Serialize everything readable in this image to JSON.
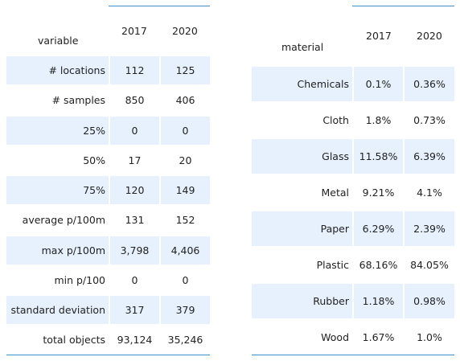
{
  "left_table": {
    "header": {
      "label": "variable",
      "col1": "2017",
      "col2": "2020"
    },
    "rows": [
      {
        "label": "# locations",
        "v2017": "112",
        "v2020": "125"
      },
      {
        "label": "# samples",
        "v2017": "850",
        "v2020": "406"
      },
      {
        "label": "25%",
        "v2017": "0",
        "v2020": "0"
      },
      {
        "label": "50%",
        "v2017": "17",
        "v2020": "20"
      },
      {
        "label": "75%",
        "v2017": "120",
        "v2020": "149"
      },
      {
        "label": "average p/100m",
        "v2017": "131",
        "v2020": "152"
      },
      {
        "label": "max p/100m",
        "v2017": "3,798",
        "v2020": "4,406"
      },
      {
        "label": "min p/100",
        "v2017": "0",
        "v2020": "0"
      },
      {
        "label": "standard deviation",
        "v2017": "317",
        "v2020": "379"
      },
      {
        "label": "total objects",
        "v2017": "93,124",
        "v2020": "35,246"
      }
    ]
  },
  "right_table": {
    "header": {
      "label": "material",
      "col1": "2017",
      "col2": "2020"
    },
    "rows": [
      {
        "label": "Chemicals",
        "v2017": "0.1%",
        "v2020": "0.36%"
      },
      {
        "label": "Cloth",
        "v2017": "1.8%",
        "v2020": "0.73%"
      },
      {
        "label": "Glass",
        "v2017": "11.58%",
        "v2020": "6.39%"
      },
      {
        "label": "Metal",
        "v2017": "9.21%",
        "v2020": "4.1%"
      },
      {
        "label": "Paper",
        "v2017": "6.29%",
        "v2020": "2.39%"
      },
      {
        "label": "Plastic",
        "v2017": "68.16%",
        "v2020": "84.05%"
      },
      {
        "label": "Rubber",
        "v2017": "1.18%",
        "v2020": "0.98%"
      },
      {
        "label": "Wood",
        "v2017": "1.67%",
        "v2020": "1.0%"
      }
    ]
  }
}
